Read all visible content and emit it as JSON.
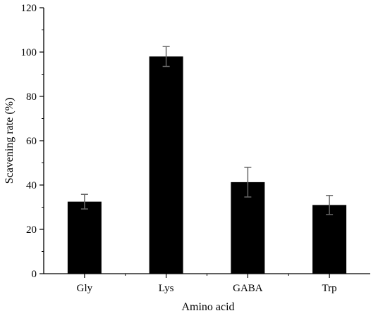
{
  "chart_data": {
    "type": "bar",
    "categories": [
      "Gly",
      "Lys",
      "GABA",
      "Trp"
    ],
    "values": [
      32.5,
      98.0,
      41.3,
      31.0
    ],
    "errors": [
      3.3,
      4.5,
      6.7,
      4.3
    ],
    "title": "",
    "xlabel": "Amino acid",
    "ylabel": "Scavening rate (%)",
    "ylim": [
      0,
      120
    ],
    "yticks": [
      "0",
      "20",
      "40",
      "60",
      "80",
      "100",
      "120"
    ],
    "grid": false,
    "legend": "none",
    "bar_color": "#000000",
    "errorbar_color": "#666666"
  }
}
